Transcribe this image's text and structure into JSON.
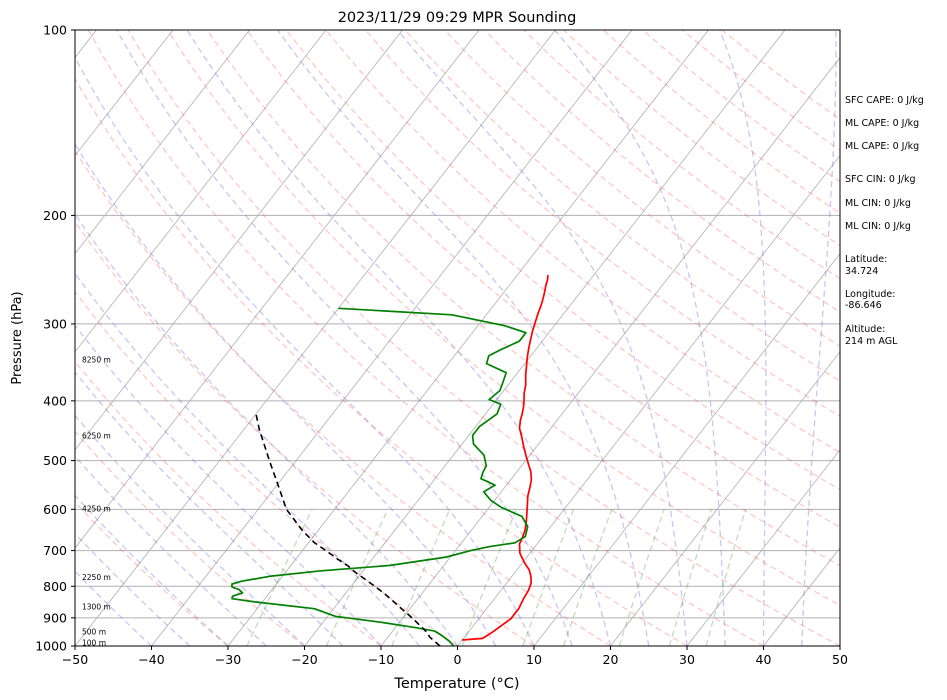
{
  "chart_data": {
    "type": "line",
    "title": "2023/11/29 09:29 MPR Sounding",
    "xlabel": "Temperature (°C)",
    "ylabel": "Pressure (hPa)",
    "xlim": [
      -50,
      50
    ],
    "ylim": [
      1000,
      100
    ],
    "y_scale": "log",
    "grid": true,
    "x_ticks": [
      "−50",
      "−40",
      "−30",
      "−20",
      "−10",
      "0",
      "10",
      "20",
      "30",
      "40",
      "50"
    ],
    "y_ticks": [
      "1000",
      "900",
      "800",
      "700",
      "600",
      "500",
      "400",
      "300",
      "200",
      "100"
    ],
    "series": [
      {
        "role": "temperature",
        "color": "#ff0000",
        "points": [
          [
            0.0,
            978
          ],
          [
            2.5,
            972
          ],
          [
            3.2,
            948
          ],
          [
            4.2,
            903
          ],
          [
            4.2,
            870
          ],
          [
            3.8,
            837
          ],
          [
            3.6,
            812
          ],
          [
            3.2,
            790
          ],
          [
            2.5,
            771
          ],
          [
            1.6,
            752
          ],
          [
            0.3,
            733
          ],
          [
            -1.3,
            707
          ],
          [
            -2.3,
            683
          ],
          [
            -2.6,
            665
          ],
          [
            -3.0,
            648
          ],
          [
            -3.7,
            628
          ],
          [
            -4.5,
            608
          ],
          [
            -5.3,
            589
          ],
          [
            -6.1,
            571
          ],
          [
            -6.7,
            553
          ],
          [
            -7.3,
            537
          ],
          [
            -8.2,
            521
          ],
          [
            -9.4,
            505
          ],
          [
            -10.6,
            489
          ],
          [
            -11.8,
            473
          ],
          [
            -12.9,
            458
          ],
          [
            -14.1,
            443
          ],
          [
            -14.8,
            430
          ],
          [
            -15.2,
            420
          ],
          [
            -15.7,
            410
          ],
          [
            -16.3,
            400
          ],
          [
            -17.1,
            388
          ],
          [
            -17.7,
            377
          ],
          [
            -18.2,
            370
          ],
          [
            -18.8,
            362
          ],
          [
            -19.4,
            353
          ],
          [
            -20.1,
            343
          ],
          [
            -20.7,
            334
          ],
          [
            -21.2,
            326
          ],
          [
            -21.7,
            318
          ],
          [
            -22.3,
            308
          ],
          [
            -22.8,
            299
          ],
          [
            -23.4,
            288
          ],
          [
            -23.8,
            280
          ],
          [
            -24.3,
            272
          ],
          [
            -24.8,
            265
          ],
          [
            -25.2,
            260
          ],
          [
            -25.6,
            254
          ],
          [
            -26.0,
            250
          ]
        ]
      },
      {
        "role": "dewpoint",
        "color": "#008000",
        "points": [
          [
            -0.4,
            1002
          ],
          [
            -1.5,
            983
          ],
          [
            -3.0,
            963
          ],
          [
            -4.5,
            946
          ],
          [
            -7.3,
            934
          ],
          [
            -12.5,
            915
          ],
          [
            -19.0,
            895
          ],
          [
            -22.5,
            870
          ],
          [
            -31.0,
            848
          ],
          [
            -34.3,
            838
          ],
          [
            -34.5,
            830
          ],
          [
            -33.5,
            820
          ],
          [
            -34.3,
            810
          ],
          [
            -35.5,
            802
          ],
          [
            -35.8,
            793
          ],
          [
            -34.8,
            785
          ],
          [
            -31.5,
            770
          ],
          [
            -25.5,
            755
          ],
          [
            -17.0,
            740
          ],
          [
            -10.5,
            717
          ],
          [
            -8.0,
            700
          ],
          [
            -6.0,
            690
          ],
          [
            -3.0,
            680
          ],
          [
            -2.3,
            664
          ],
          [
            -3.0,
            640
          ],
          [
            -4.8,
            616
          ],
          [
            -8.5,
            595
          ],
          [
            -10.5,
            580
          ],
          [
            -12.3,
            562
          ],
          [
            -11.5,
            548
          ],
          [
            -13.0,
            540
          ],
          [
            -14.0,
            535
          ],
          [
            -14.4,
            522
          ],
          [
            -14.6,
            510
          ],
          [
            -16.0,
            490
          ],
          [
            -18.5,
            470
          ],
          [
            -19.5,
            455
          ],
          [
            -19.5,
            440
          ],
          [
            -19.0,
            430
          ],
          [
            -18.5,
            420
          ],
          [
            -19.0,
            405
          ],
          [
            -21.0,
            398
          ],
          [
            -20.5,
            385
          ],
          [
            -21.0,
            372
          ],
          [
            -21.5,
            360
          ],
          [
            -25.0,
            348
          ],
          [
            -25.5,
            338
          ],
          [
            -24.5,
            330
          ],
          [
            -23.0,
            320
          ],
          [
            -23.0,
            310
          ],
          [
            -26.5,
            302
          ],
          [
            -34.5,
            290
          ],
          [
            -50.0,
            283
          ]
        ]
      },
      {
        "role": "parcel",
        "color": "#000000",
        "style": "dashed",
        "points": [
          [
            -2.3,
            1000
          ],
          [
            -3.3,
            985
          ],
          [
            -4.5,
            968
          ],
          [
            -5.4,
            950
          ],
          [
            -6.6,
            932
          ],
          [
            -8.1,
            910
          ],
          [
            -9.8,
            887
          ],
          [
            -11.5,
            865
          ],
          [
            -13.2,
            843
          ],
          [
            -15.0,
            821
          ],
          [
            -16.9,
            800
          ],
          [
            -18.8,
            780
          ],
          [
            -20.8,
            760
          ],
          [
            -22.5,
            741
          ],
          [
            -24.6,
            722
          ],
          [
            -26.6,
            703
          ],
          [
            -29.2,
            680
          ],
          [
            -32.0,
            650
          ],
          [
            -36.3,
            600
          ],
          [
            -39.0,
            560
          ],
          [
            -43.5,
            500
          ],
          [
            -48.0,
            445
          ],
          [
            -50.0,
            420
          ]
        ]
      }
    ],
    "height_labels": [
      {
        "text": "100 m",
        "p": 990
      },
      {
        "text": "500 m",
        "p": 951
      },
      {
        "text": "1300 m",
        "p": 866
      },
      {
        "text": "2250 m",
        "p": 775
      },
      {
        "text": "4250 m",
        "p": 600
      },
      {
        "text": "6250 m",
        "p": 457
      },
      {
        "text": "8250 m",
        "p": 344
      }
    ],
    "annotations": [
      "SFC CAPE: 0 J/kg",
      "ML CAPE: 0 J/kg",
      "ML CAPE: 0 J/kg",
      "SFC CIN: 0 J/kg",
      "ML CIN: 0 J/kg",
      "ML CIN: 0 J/kg",
      "Latitude:",
      "34.724",
      "Longitude:",
      "-86.646",
      "Altitude:",
      "214 m AGL"
    ]
  }
}
